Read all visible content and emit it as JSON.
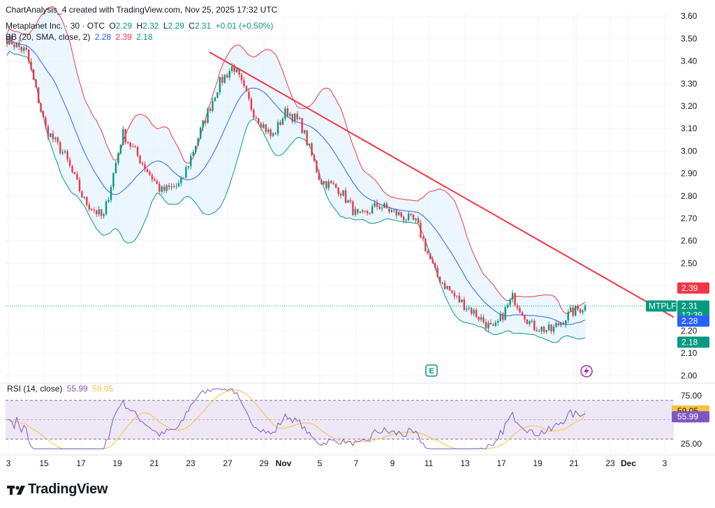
{
  "attribution": "ChartAnalysis_4 created with TradingView.com, Nov 25, 2025 17:32 UTC",
  "legend": {
    "symbol": "Metaplanet Inc. · 30 · OTC",
    "o_label": "O",
    "o_value": "2.29",
    "h_label": "H",
    "h_value": "2.32",
    "l_label": "L",
    "l_value": "2.29",
    "c_label": "C",
    "c_value": "2.31",
    "change": "+0.01 (+0.50%)",
    "bb_label": "BB (20, SMA, close, 2)",
    "bb_mid": "2.28",
    "bb_upper": "2.39",
    "bb_lower": "2.18",
    "rsi_label": "RSI (14, close)",
    "rsi_value": "55.99",
    "rsi_ma": "59.05"
  },
  "colors": {
    "up": "#089981",
    "down": "#f23645",
    "bb_basis": "#2962ff",
    "bb_upper": "#f23645",
    "bb_lower": "#089981",
    "bb_fill": "#e3f2fd",
    "trendline": "#f23645",
    "rsi": "#7e57c2",
    "rsi_ma": "#f5c342",
    "rsi_band": "#ede7f6"
  },
  "tags": {
    "symbol": "MTPLF",
    "price": "2.31",
    "countdown": "12:39",
    "upper": "2.39",
    "basis": "2.28",
    "lower": "2.18",
    "rsi": "55.99",
    "rsi_ma": "59.05"
  },
  "events": {
    "earnings_label": "E"
  },
  "footer": {
    "brand": "TradingView"
  },
  "chart_data": [
    {
      "type": "candlestick",
      "title": "Metaplanet Inc. · 30 · OTC",
      "xlabel": "",
      "ylabel": "",
      "ylim": [
        1.97,
        3.61
      ],
      "y_ticks": [
        "2.00",
        "2.10",
        "2.20",
        "2.30",
        "2.40",
        "2.50",
        "2.60",
        "2.70",
        "2.80",
        "2.90",
        "3.00",
        "3.10",
        "3.20",
        "3.30",
        "3.40",
        "3.50",
        "3.60"
      ],
      "x_ticks": [
        "3",
        "15",
        "17",
        "19",
        "21",
        "23",
        "27",
        "29",
        "Nov",
        "5",
        "7",
        "9",
        "11",
        "13",
        "17",
        "19",
        "21",
        "23",
        "25",
        "Dec",
        "3"
      ],
      "grid": true,
      "close_path": [
        [
          0,
          3.5
        ],
        [
          4,
          3.44
        ],
        [
          8,
          3.1
        ],
        [
          12,
          2.98
        ],
        [
          16,
          2.78
        ],
        [
          20,
          2.7
        ],
        [
          24,
          3.08
        ],
        [
          28,
          2.95
        ],
        [
          32,
          2.82
        ],
        [
          36,
          2.85
        ],
        [
          40,
          3.08
        ],
        [
          44,
          3.3
        ],
        [
          47,
          3.38
        ],
        [
          51,
          3.18
        ],
        [
          55,
          3.06
        ],
        [
          58,
          3.18
        ],
        [
          61,
          3.12
        ],
        [
          65,
          2.87
        ],
        [
          69,
          2.83
        ],
        [
          73,
          2.7
        ],
        [
          77,
          2.76
        ],
        [
          81,
          2.72
        ],
        [
          85,
          2.68
        ],
        [
          89,
          2.45
        ],
        [
          93,
          2.35
        ],
        [
          97,
          2.28
        ],
        [
          101,
          2.2
        ],
        [
          105,
          2.35
        ],
        [
          109,
          2.22
        ],
        [
          113,
          2.2
        ],
        [
          117,
          2.28
        ],
        [
          120,
          2.31
        ]
      ],
      "bollinger_bands": {
        "period": 20,
        "stddev": 2,
        "last_upper": 2.39,
        "last_basis": 2.28,
        "last_lower": 2.18
      },
      "trendline": {
        "from_price": 3.44,
        "to_price": 2.26
      },
      "last_close": 2.31
    },
    {
      "type": "line",
      "title": "RSI (14, close)",
      "ylim": [
        15,
        85
      ],
      "y_ticks": [
        "25.00",
        "50.00",
        "75.00"
      ],
      "bands": [
        30,
        70
      ],
      "series": [
        {
          "name": "RSI (14, close)",
          "last": 55.99
        },
        {
          "name": "RSI MA",
          "last": 59.05
        }
      ]
    }
  ]
}
